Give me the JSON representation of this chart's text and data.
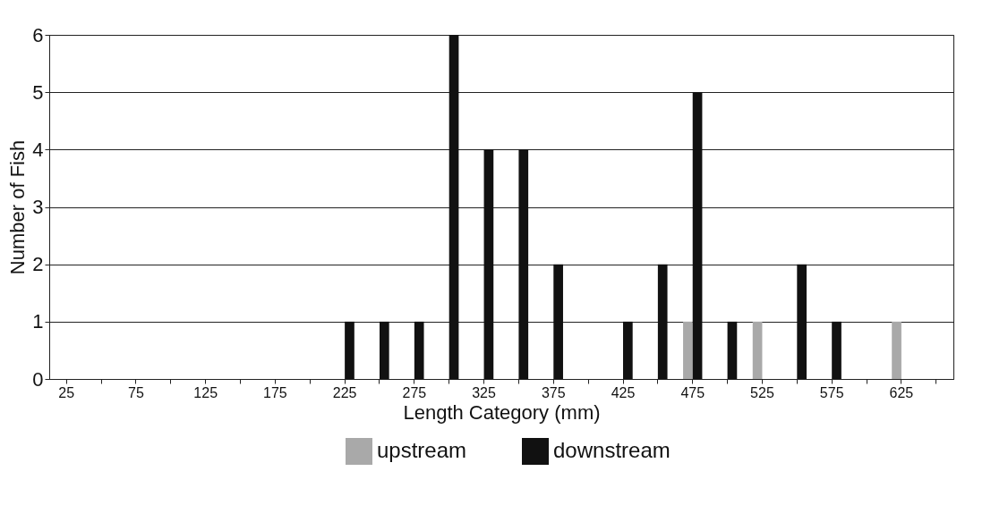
{
  "chart_data": {
    "type": "bar",
    "xlabel": "Length Category (mm)",
    "ylabel": "Number of Fish",
    "categories": [
      "25",
      null,
      "75",
      null,
      "125",
      null,
      "175",
      null,
      "225",
      null,
      "275",
      null,
      "325",
      null,
      "375",
      null,
      "425",
      null,
      "475",
      null,
      "525",
      null,
      "575",
      null,
      "625",
      null
    ],
    "series": [
      {
        "name": "upstream",
        "color": "#a9a9a9",
        "values": [
          0,
          0,
          0,
          0,
          0,
          0,
          0,
          0,
          0,
          0,
          0,
          0,
          0,
          0,
          0,
          0,
          0,
          0,
          1,
          0,
          1,
          0,
          0,
          0,
          1,
          0
        ]
      },
      {
        "name": "downstream",
        "color": "#111111",
        "values": [
          0,
          0,
          0,
          0,
          0,
          0,
          0,
          0,
          1,
          1,
          1,
          6,
          4,
          4,
          2,
          0,
          1,
          2,
          5,
          1,
          0,
          2,
          1,
          0,
          0,
          0
        ]
      }
    ],
    "ylim": [
      0,
      6
    ],
    "yticks": [
      0,
      1,
      2,
      3,
      4,
      5,
      6
    ],
    "grid": "y",
    "legend": "bottom"
  }
}
